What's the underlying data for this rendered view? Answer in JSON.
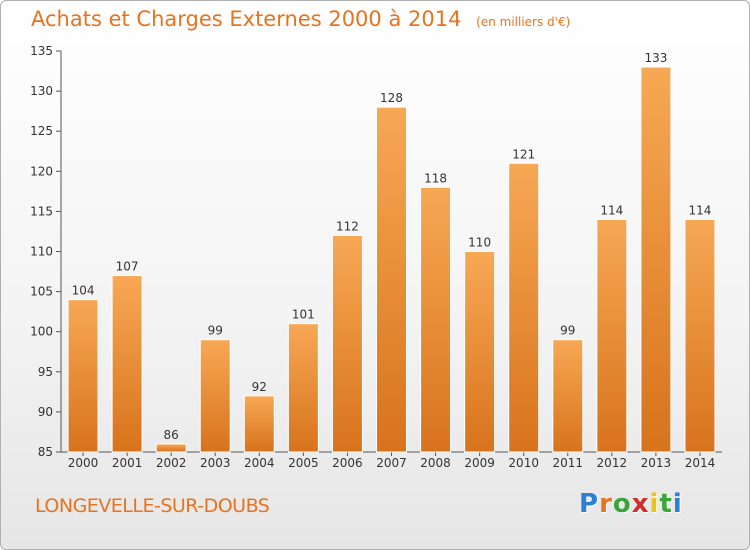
{
  "chart_data": {
    "type": "bar",
    "title": "Achats et Charges Externes 2000 à 2014",
    "unit_label": "(en milliers d'€)",
    "categories": [
      "2000",
      "2001",
      "2002",
      "2003",
      "2004",
      "2005",
      "2006",
      "2007",
      "2008",
      "2009",
      "2010",
      "2011",
      "2012",
      "2013",
      "2014"
    ],
    "values": [
      104,
      107,
      86,
      99,
      92,
      101,
      112,
      128,
      118,
      110,
      121,
      99,
      114,
      133,
      114
    ],
    "ylim": [
      85,
      135
    ],
    "yticks": [
      85,
      90,
      95,
      100,
      105,
      110,
      115,
      120,
      125,
      130,
      135
    ],
    "grid": false,
    "bar_color_top": "#f7a855",
    "bar_color_bottom": "#d8731c"
  },
  "place_name": "LONGEVELLE-SUR-DOUBS",
  "brand": {
    "name": "Proxiti",
    "letter_colors": [
      "#2b7fd4",
      "#e8731e",
      "#3aa63a",
      "#d62b2b",
      "#e8c41e",
      "#3aa63a",
      "#2b7fd4"
    ]
  },
  "colors": {
    "accent": "#e8731e",
    "axis": "#555555"
  }
}
